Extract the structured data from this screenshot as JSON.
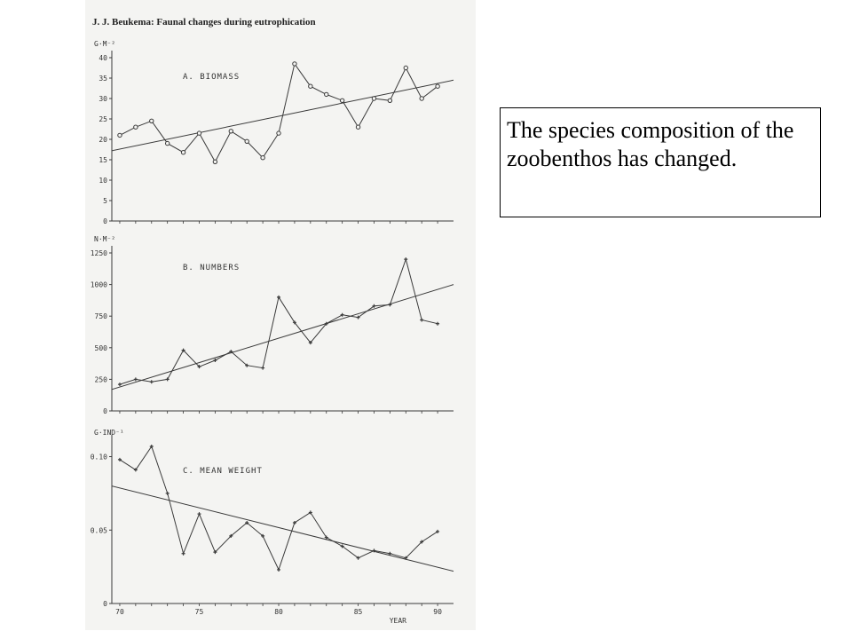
{
  "figure": {
    "header": "J. J. Beukema: Faunal changes during eutrophication"
  },
  "caption": {
    "text": "The species composition of the zoobenthos has changed."
  },
  "chart_data": [
    {
      "type": "line",
      "title": "A. BIOMASS",
      "ylabel": "G·M⁻²",
      "xlabel": "YEAR",
      "ylim": [
        0,
        40
      ],
      "yticks": [
        "0",
        "5",
        "10",
        "15",
        "20",
        "25",
        "30",
        "35",
        "40"
      ],
      "xticks": [
        "70",
        "75",
        "80",
        "85",
        "90"
      ],
      "marker": "circle",
      "x": [
        1970,
        1971,
        1972,
        1973,
        1974,
        1975,
        1976,
        1977,
        1978,
        1979,
        1980,
        1981,
        1982,
        1983,
        1984,
        1985,
        1986,
        1987,
        1988,
        1989,
        1990
      ],
      "values": [
        21,
        23,
        24.5,
        19,
        16.8,
        21.5,
        14.5,
        22,
        19.5,
        15.5,
        21.5,
        38.5,
        33,
        31,
        29.5,
        23,
        30,
        29.5,
        37.5,
        30,
        33
      ],
      "trend": {
        "x": [
          1969.5,
          1991
        ],
        "y": [
          17.2,
          34.5
        ]
      }
    },
    {
      "type": "line",
      "title": "B. NUMBERS",
      "ylabel": "N·M⁻²",
      "xlabel": "YEAR",
      "ylim": [
        0,
        1250
      ],
      "yticks": [
        "0",
        "250",
        "500",
        "750",
        "1000",
        "1250"
      ],
      "xticks": [
        "70",
        "75",
        "80",
        "85",
        "90"
      ],
      "marker": "plus",
      "x": [
        1970,
        1971,
        1972,
        1973,
        1974,
        1975,
        1976,
        1977,
        1978,
        1979,
        1980,
        1981,
        1982,
        1983,
        1984,
        1985,
        1986,
        1987,
        1988,
        1989,
        1990
      ],
      "values": [
        210,
        250,
        230,
        250,
        480,
        350,
        400,
        470,
        360,
        340,
        900,
        700,
        540,
        690,
        760,
        740,
        830,
        840,
        1200,
        720,
        690
      ],
      "trend": {
        "x": [
          1969.5,
          1991
        ],
        "y": [
          170,
          1000
        ]
      }
    },
    {
      "type": "line",
      "title": "C. MEAN WEIGHT",
      "ylabel": "G·IND⁻¹",
      "xlabel": "YEAR",
      "ylim": [
        0,
        0.11
      ],
      "yticks": [
        "0",
        "0.05",
        "0.10"
      ],
      "xticks": [
        "70",
        "75",
        "80",
        "85",
        "90"
      ],
      "marker": "plus",
      "x": [
        1970,
        1971,
        1972,
        1973,
        1974,
        1975,
        1976,
        1977,
        1978,
        1979,
        1980,
        1981,
        1982,
        1983,
        1984,
        1985,
        1986,
        1987,
        1988,
        1989,
        1990
      ],
      "values": [
        0.098,
        0.091,
        0.107,
        0.075,
        0.034,
        0.061,
        0.035,
        0.046,
        0.055,
        0.046,
        0.023,
        0.055,
        0.062,
        0.045,
        0.039,
        0.031,
        0.036,
        0.034,
        0.031,
        0.042,
        0.049
      ],
      "trend": {
        "x": [
          1969.5,
          1991
        ],
        "y": [
          0.08,
          0.022
        ]
      }
    }
  ]
}
